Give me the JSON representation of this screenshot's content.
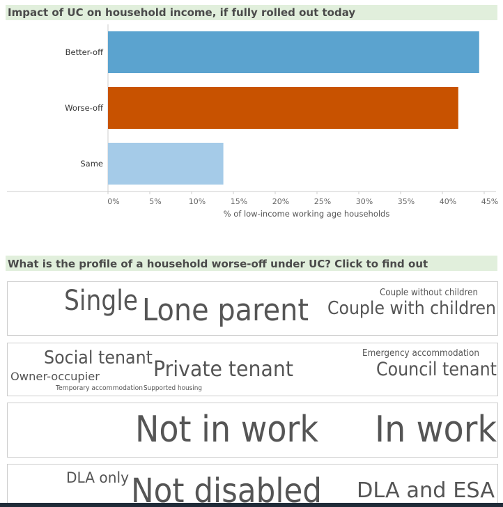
{
  "chart_data": {
    "type": "bar",
    "orientation": "horizontal",
    "title": "Impact of UC on household income, if fully rolled out today",
    "categories": [
      "Better-off",
      "Worse-off",
      "Same"
    ],
    "values": [
      44.4,
      41.9,
      13.8
    ],
    "colors": [
      "#5ba3cf",
      "#c85200",
      "#a5cbe8"
    ],
    "xlabel": "% of low-income working age households",
    "xlim": [
      0,
      46.2
    ],
    "xticks": [
      {
        "value": 0,
        "label": "0%"
      },
      {
        "value": 5,
        "label": "5%"
      },
      {
        "value": 10,
        "label": "10%"
      },
      {
        "value": 15,
        "label": "15%"
      },
      {
        "value": 20,
        "label": "20%"
      },
      {
        "value": 25,
        "label": "25%"
      },
      {
        "value": 30,
        "label": "30%"
      },
      {
        "value": 35,
        "label": "35%"
      },
      {
        "value": 40,
        "label": "40%"
      },
      {
        "value": 45,
        "label": "45%"
      }
    ],
    "grid": false
  },
  "profile": {
    "title": "What is the profile of a household worse-off under UC? Click to find out",
    "panels": [
      [
        "Single",
        "Lone parent",
        "Couple without children",
        "Couple with children"
      ],
      [
        "Social tenant",
        "Private tenant",
        "Owner-occupier",
        "Temporary accommodation",
        "Supported housing",
        "Emergency accommodation",
        "Council tenant"
      ],
      [
        "Not in work",
        "In work"
      ],
      [
        "DLA only",
        "Not disabled",
        "DLA and ESA"
      ]
    ]
  }
}
